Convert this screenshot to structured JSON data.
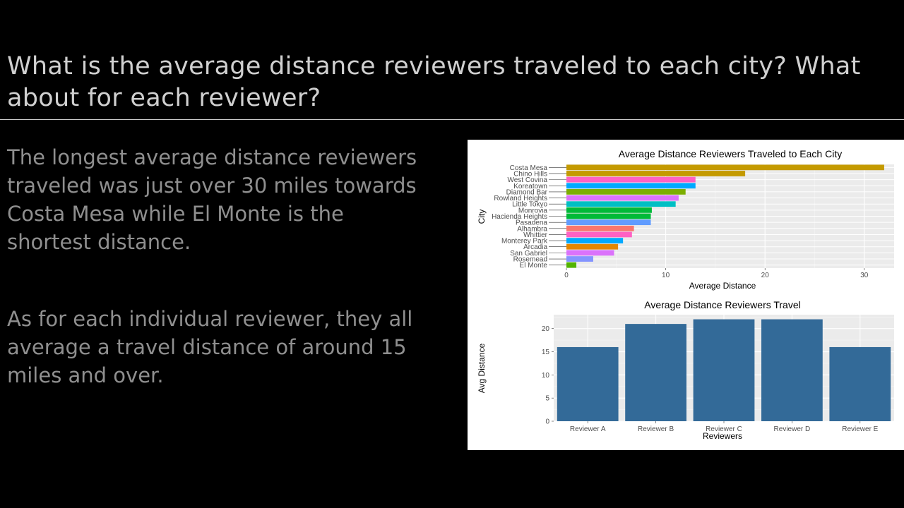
{
  "slide": {
    "title": "What is the average distance reviewers traveled to each city? What about for each reviewer?",
    "paragraph_1": "The longest average distance reviewers traveled was just over 30 miles towards Costa Mesa while El Monte is the shortest distance.",
    "paragraph_2": "As for each individual reviewer, they all average a travel distance of around 15 miles and over."
  },
  "chart_data": [
    {
      "type": "bar",
      "orientation": "horizontal",
      "title": "Average Distance Reviewers Traveled to Each City",
      "xlabel": "Average Distance",
      "ylabel": "City",
      "xlim": [
        0,
        33
      ],
      "xticks": [
        0,
        10,
        20,
        30
      ],
      "grid": true,
      "categories": [
        "Costa Mesa",
        "Chino Hills",
        "West Covina",
        "Koreatown",
        "Diamond Bar",
        "Rowland Heights",
        "Little Tokyo",
        "Monrovia",
        "Hacienda Heights",
        "Pasadena",
        "Alhambra",
        "Whittier",
        "Monterey Park",
        "Arcadia",
        "San Gabriel",
        "Rosemead",
        "El Monte"
      ],
      "values": [
        32,
        18,
        13,
        13,
        12,
        11.3,
        11,
        8.6,
        8.5,
        8.5,
        6.8,
        6.6,
        5.7,
        5.2,
        4.8,
        2.7,
        1.0
      ],
      "colors": [
        "#C49A00",
        "#C49A00",
        "#FF61C3",
        "#00A9FF",
        "#7CAE00",
        "#DB72FB",
        "#00BFC4",
        "#00BA38",
        "#00BA38",
        "#619CFF",
        "#F8766D",
        "#FF61C3",
        "#00A9FF",
        "#E58700",
        "#DB72FB",
        "#8494FF",
        "#53B400"
      ]
    },
    {
      "type": "bar",
      "title": "Average Distance Reviewers Travel",
      "xlabel": "Reviewers",
      "ylabel": "Avg Distance",
      "ylim": [
        0,
        23
      ],
      "yticks": [
        0,
        5,
        10,
        15,
        20
      ],
      "grid": true,
      "categories": [
        "Reviewer A",
        "Reviewer B",
        "Reviewer C",
        "Reviewer D",
        "Reviewer E"
      ],
      "values": [
        16,
        21,
        22,
        22,
        16
      ],
      "bar_color": "#336A98"
    }
  ]
}
